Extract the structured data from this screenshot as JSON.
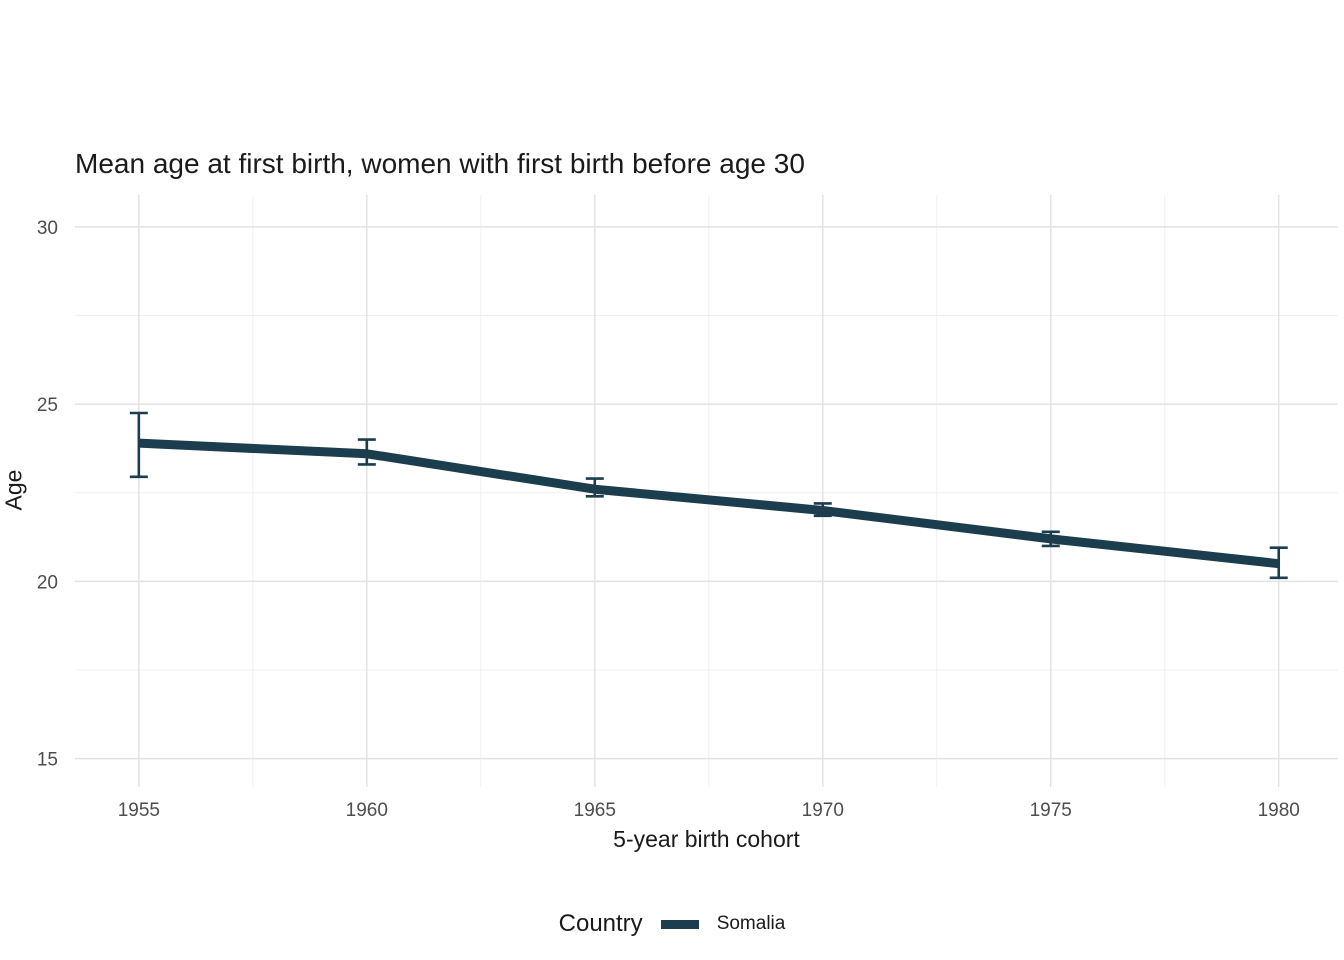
{
  "legend": {
    "title": "Country"
  },
  "chart_data": {
    "type": "line",
    "title": "Mean age at first birth, women with first birth before age 30",
    "xlabel": "5-year birth cohort",
    "ylabel": "Age",
    "x": [
      1955,
      1960,
      1965,
      1970,
      1975,
      1980
    ],
    "series": [
      {
        "name": "Somalia",
        "color": "#1c3d4d",
        "values": [
          23.9,
          23.6,
          22.6,
          22.0,
          21.2,
          20.5
        ],
        "err_low": [
          22.95,
          23.3,
          22.4,
          21.85,
          21.0,
          20.1
        ],
        "err_high": [
          24.75,
          24.0,
          22.9,
          22.2,
          21.4,
          20.95
        ]
      }
    ],
    "xticks": [
      1955,
      1960,
      1965,
      1970,
      1975,
      1980
    ],
    "yticks": [
      15,
      20,
      25,
      30
    ],
    "xminor": [
      1957.5,
      1962.5,
      1967.5,
      1972.5,
      1977.5
    ],
    "yminor": [
      17.5,
      22.5,
      27.5
    ],
    "xlim": [
      1953.6,
      1981.3
    ],
    "ylim": [
      14.2,
      30.9
    ],
    "grid": true,
    "legend_position": "bottom",
    "background": "#ffffff",
    "grid_major_color": "#e3e3e3",
    "grid_minor_color": "#f0f0f0",
    "tick_label_color": "#4d4d4d"
  }
}
